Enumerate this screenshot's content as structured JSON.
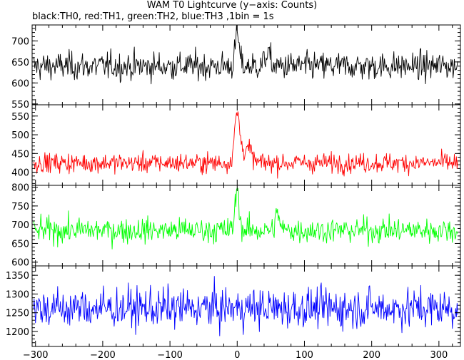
{
  "title": "WAM T0 Lightcurve (y−axis: Counts)",
  "subtitle": "black:TH0, red:TH1, green:TH2, blue:TH3 ,1bin = 1s",
  "chart_data": {
    "type": "line",
    "x_range": [
      -305,
      332
    ],
    "x_ticks": [
      -300,
      -200,
      -100,
      0,
      100,
      200,
      300
    ],
    "bin_seconds": 1,
    "panels": [
      {
        "name": "TH0",
        "color": "#000000",
        "ylim": [
          548,
          738
        ],
        "y_ticks": [
          550,
          600,
          650,
          700
        ],
        "baseline": 640,
        "noise": 28,
        "peaks": [
          {
            "t": 0,
            "amp": 75,
            "width": 3
          },
          {
            "t": 45,
            "amp": 30,
            "width": 4
          }
        ]
      },
      {
        "name": "TH1",
        "color": "#ff0000",
        "ylim": [
          365,
          580
        ],
        "y_ticks": [
          400,
          450,
          500,
          550
        ],
        "baseline": 425,
        "noise": 22,
        "peaks": [
          {
            "t": 0,
            "amp": 130,
            "width": 4
          },
          {
            "t": 15,
            "amp": 40,
            "width": 6
          }
        ]
      },
      {
        "name": "TH2",
        "color": "#00ff00",
        "ylim": [
          590,
          805
        ],
        "y_ticks": [
          600,
          650,
          700,
          750,
          800
        ],
        "baseline": 685,
        "noise": 28,
        "peaks": [
          {
            "t": 0,
            "amp": 110,
            "width": 3
          },
          {
            "t": 60,
            "amp": 45,
            "width": 3
          }
        ]
      },
      {
        "name": "TH3",
        "color": "#0000ff",
        "ylim": [
          1160,
          1375
        ],
        "y_ticks": [
          1200,
          1250,
          1300,
          1350
        ],
        "baseline": 1262,
        "noise": 45,
        "peaks": []
      }
    ]
  }
}
